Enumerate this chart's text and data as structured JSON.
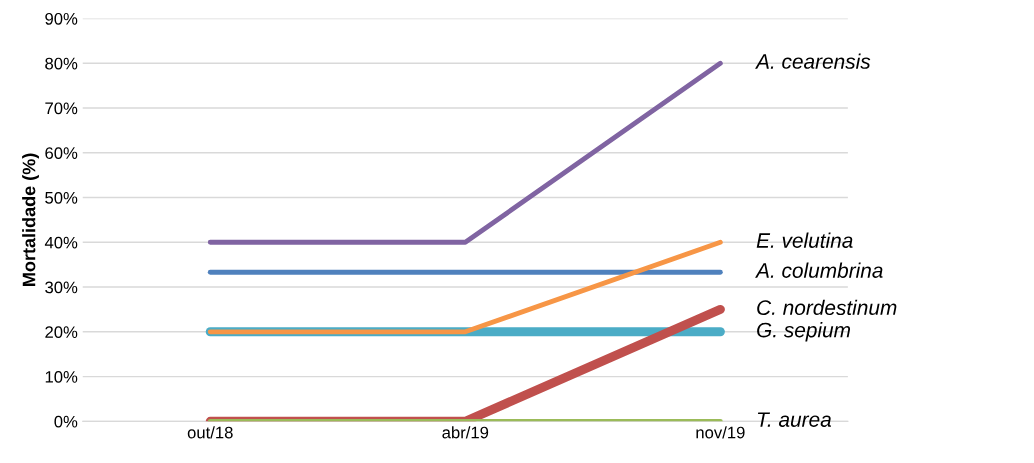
{
  "chart_data": {
    "type": "line",
    "ylabel": "Mortalidade (%)",
    "categories": [
      "out/18",
      "abr/19",
      "nov/19"
    ],
    "ylim": [
      0,
      90
    ],
    "yticks": [
      {
        "value": 0,
        "label": "0%"
      },
      {
        "value": 10,
        "label": "10%"
      },
      {
        "value": 20,
        "label": "20%"
      },
      {
        "value": 30,
        "label": "30%"
      },
      {
        "value": 40,
        "label": "40%"
      },
      {
        "value": 50,
        "label": "50%"
      },
      {
        "value": 60,
        "label": "60%"
      },
      {
        "value": 70,
        "label": "70%"
      },
      {
        "value": 80,
        "label": "80%"
      },
      {
        "value": 90,
        "label": "90%"
      }
    ],
    "grid": "y",
    "legend": false,
    "marker": "none",
    "line_style": "solid",
    "series": [
      {
        "name": "A. cearensis",
        "color": "#8064a2",
        "values": [
          40,
          40,
          80
        ]
      },
      {
        "name": "A. columbrina",
        "color": "#4f81bd",
        "values": [
          33.3,
          33.3,
          33.3
        ]
      },
      {
        "name": "G. sepium",
        "color": "#4bacc6",
        "values": [
          20,
          20,
          20
        ]
      },
      {
        "name": "E. velutina",
        "color": "#f79646",
        "values": [
          20,
          20,
          40
        ]
      },
      {
        "name": "C. nordestinum",
        "color": "#c0504d",
        "values": [
          0,
          0,
          25
        ]
      },
      {
        "name": "T. aurea",
        "color": "#9bbb59",
        "values": [
          0,
          0,
          0
        ]
      }
    ]
  }
}
